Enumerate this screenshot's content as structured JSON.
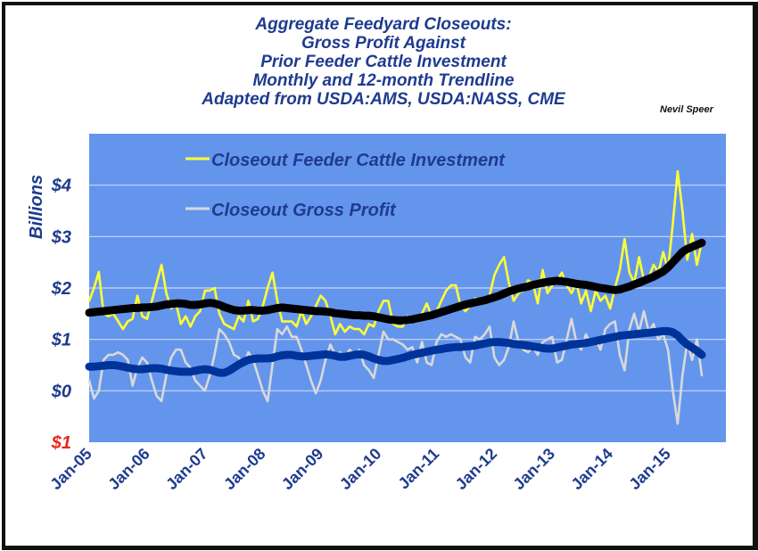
{
  "chart_data": {
    "type": "line",
    "title": [
      "Aggregate Feedyard Closeouts:",
      "Gross Profit Against",
      "Prior Feeder Cattle Investment",
      "Monthly and 12-month Trendline",
      "Adapted from USDA:AMS, USDA:NASS, CME"
    ],
    "author": "Nevil Speer",
    "ylabel": "Billions",
    "xlabel": "",
    "ylim": [
      -1,
      5
    ],
    "yticks": [
      {
        "value": 4,
        "label": "$4"
      },
      {
        "value": 3,
        "label": "$3"
      },
      {
        "value": 2,
        "label": "$2"
      },
      {
        "value": 1,
        "label": "$1"
      },
      {
        "value": 0,
        "label": "$0"
      },
      {
        "value": -1,
        "label": "$1",
        "negative": true
      }
    ],
    "xticks": [
      "Jan-05",
      "Jan-06",
      "Jan-07",
      "Jan-08",
      "Jan-09",
      "Jan-10",
      "Jan-11",
      "Jan-12",
      "Jan-13",
      "Jan-14",
      "Jan-15"
    ],
    "x_start": "Jan-05",
    "x_unit": "month",
    "x_range_months": [
      0,
      132
    ],
    "grid": true,
    "legend_position": "top-left-inside",
    "colors": {
      "plot_bg": "#6495ED",
      "grid": "#C9D6F2",
      "investment": "#FFFF33",
      "profit": "#D9D9D9",
      "investment_trend": "#000000",
      "profit_trend": "#003399",
      "text": "#1F3B8F",
      "negative_tick": "#E8261C"
    },
    "series": [
      {
        "name": "Closeout Feeder Cattle Investment",
        "legend": true,
        "color_key": "investment",
        "values": [
          1.75,
          2.0,
          2.31,
          1.5,
          1.45,
          1.5,
          1.35,
          1.2,
          1.35,
          1.4,
          1.85,
          1.45,
          1.4,
          1.75,
          2.1,
          2.45,
          1.9,
          1.6,
          1.7,
          1.3,
          1.45,
          1.25,
          1.45,
          1.55,
          1.95,
          1.95,
          2.0,
          1.5,
          1.3,
          1.25,
          1.2,
          1.45,
          1.35,
          1.75,
          1.35,
          1.4,
          1.65,
          2.0,
          2.3,
          1.75,
          1.35,
          1.35,
          1.35,
          1.25,
          1.55,
          1.3,
          1.45,
          1.65,
          1.85,
          1.75,
          1.45,
          1.1,
          1.3,
          1.15,
          1.25,
          1.2,
          1.2,
          1.1,
          1.3,
          1.25,
          1.55,
          1.75,
          1.75,
          1.3,
          1.25,
          1.25,
          1.45,
          1.35,
          1.35,
          1.5,
          1.7,
          1.45,
          1.55,
          1.75,
          1.95,
          2.05,
          2.05,
          1.65,
          1.55,
          1.65,
          1.8,
          1.75,
          1.7,
          1.85,
          2.25,
          2.45,
          2.6,
          2.1,
          1.75,
          1.9,
          1.95,
          2.15,
          2.1,
          1.7,
          2.35,
          1.9,
          2.05,
          2.15,
          2.3,
          2.05,
          1.9,
          2.1,
          1.7,
          1.95,
          1.55,
          1.95,
          1.75,
          1.85,
          1.6,
          2.0,
          2.35,
          2.95,
          2.3,
          2.1,
          2.6,
          2.15,
          2.2,
          2.45,
          2.3,
          2.7,
          2.35,
          3.25,
          4.27,
          3.5,
          2.55,
          3.05,
          2.45,
          2.9
        ]
      },
      {
        "name": "Closeout Gross Profit",
        "legend": true,
        "color_key": "profit",
        "values": [
          0.2,
          -0.15,
          0.0,
          0.6,
          0.7,
          0.7,
          0.75,
          0.7,
          0.6,
          0.1,
          0.45,
          0.65,
          0.55,
          0.2,
          -0.1,
          -0.2,
          0.3,
          0.65,
          0.8,
          0.8,
          0.55,
          0.45,
          0.2,
          0.1,
          0.0,
          0.3,
          0.7,
          1.2,
          1.1,
          0.95,
          0.7,
          0.65,
          0.5,
          0.75,
          0.6,
          0.3,
          0.0,
          -0.2,
          0.5,
          1.2,
          1.1,
          1.25,
          1.05,
          1.05,
          0.8,
          0.5,
          0.2,
          -0.05,
          0.2,
          0.6,
          0.9,
          0.7,
          0.75,
          0.65,
          0.8,
          0.7,
          0.8,
          0.5,
          0.4,
          0.25,
          0.7,
          1.15,
          1.0,
          1.0,
          0.95,
          0.9,
          0.8,
          0.85,
          0.55,
          0.95,
          0.55,
          0.5,
          0.95,
          1.1,
          1.05,
          1.1,
          1.05,
          1.0,
          0.65,
          0.55,
          1.05,
          1.0,
          1.1,
          1.25,
          0.65,
          0.5,
          0.6,
          0.85,
          1.35,
          0.95,
          0.8,
          0.75,
          0.85,
          0.7,
          0.95,
          1.0,
          1.05,
          0.55,
          0.6,
          1.0,
          1.4,
          0.95,
          0.8,
          1.1,
          0.9,
          1.0,
          0.8,
          1.2,
          1.3,
          1.35,
          0.7,
          0.4,
          1.2,
          1.5,
          1.15,
          1.55,
          1.15,
          1.3,
          1.0,
          1.1,
          0.8,
          0.0,
          -0.64,
          0.3,
          0.95,
          0.6,
          1.0,
          0.3
        ]
      },
      {
        "name": "Investment 12-month Trendline",
        "legend": false,
        "color_key": "investment_trend",
        "values": [
          1.52,
          1.53,
          1.54,
          1.55,
          1.56,
          1.57,
          1.58,
          1.59,
          1.6,
          1.61,
          1.61,
          1.62,
          1.62,
          1.63,
          1.64,
          1.66,
          1.68,
          1.69,
          1.7,
          1.7,
          1.69,
          1.67,
          1.67,
          1.68,
          1.7,
          1.71,
          1.7,
          1.67,
          1.63,
          1.6,
          1.57,
          1.56,
          1.56,
          1.57,
          1.57,
          1.56,
          1.56,
          1.57,
          1.59,
          1.61,
          1.62,
          1.61,
          1.6,
          1.59,
          1.58,
          1.57,
          1.56,
          1.55,
          1.55,
          1.54,
          1.53,
          1.51,
          1.5,
          1.49,
          1.48,
          1.47,
          1.47,
          1.46,
          1.46,
          1.45,
          1.43,
          1.41,
          1.39,
          1.38,
          1.37,
          1.37,
          1.38,
          1.39,
          1.41,
          1.43,
          1.45,
          1.47,
          1.5,
          1.53,
          1.56,
          1.59,
          1.62,
          1.65,
          1.68,
          1.7,
          1.72,
          1.74,
          1.76,
          1.79,
          1.82,
          1.85,
          1.89,
          1.93,
          1.96,
          1.99,
          2.01,
          2.03,
          2.06,
          2.08,
          2.1,
          2.12,
          2.13,
          2.14,
          2.13,
          2.12,
          2.1,
          2.08,
          2.07,
          2.06,
          2.04,
          2.02,
          2.0,
          1.99,
          1.97,
          1.96,
          1.97,
          2.0,
          2.03,
          2.07,
          2.1,
          2.14,
          2.18,
          2.22,
          2.27,
          2.32,
          2.4,
          2.5,
          2.6,
          2.7,
          2.76,
          2.8,
          2.84,
          2.88
        ]
      },
      {
        "name": "Gross Profit 12-month Trendline",
        "legend": false,
        "color_key": "profit_trend",
        "values": [
          0.47,
          0.47,
          0.48,
          0.49,
          0.5,
          0.5,
          0.49,
          0.47,
          0.45,
          0.43,
          0.42,
          0.42,
          0.43,
          0.44,
          0.44,
          0.43,
          0.41,
          0.39,
          0.38,
          0.37,
          0.37,
          0.37,
          0.39,
          0.41,
          0.42,
          0.41,
          0.38,
          0.35,
          0.35,
          0.39,
          0.45,
          0.51,
          0.56,
          0.6,
          0.62,
          0.63,
          0.63,
          0.63,
          0.64,
          0.67,
          0.69,
          0.7,
          0.7,
          0.68,
          0.67,
          0.67,
          0.68,
          0.69,
          0.7,
          0.71,
          0.7,
          0.68,
          0.66,
          0.66,
          0.68,
          0.7,
          0.71,
          0.7,
          0.67,
          0.63,
          0.6,
          0.58,
          0.58,
          0.6,
          0.62,
          0.64,
          0.67,
          0.7,
          0.72,
          0.74,
          0.76,
          0.78,
          0.8,
          0.81,
          0.83,
          0.84,
          0.85,
          0.85,
          0.86,
          0.87,
          0.88,
          0.9,
          0.92,
          0.94,
          0.95,
          0.95,
          0.94,
          0.93,
          0.91,
          0.9,
          0.89,
          0.88,
          0.86,
          0.85,
          0.83,
          0.82,
          0.82,
          0.84,
          0.86,
          0.88,
          0.9,
          0.91,
          0.92,
          0.93,
          0.95,
          0.97,
          0.99,
          1.01,
          1.03,
          1.05,
          1.07,
          1.08,
          1.09,
          1.1,
          1.11,
          1.12,
          1.13,
          1.14,
          1.15,
          1.16,
          1.16,
          1.14,
          1.08,
          0.98,
          0.9,
          0.84,
          0.78,
          0.7
        ]
      }
    ]
  }
}
